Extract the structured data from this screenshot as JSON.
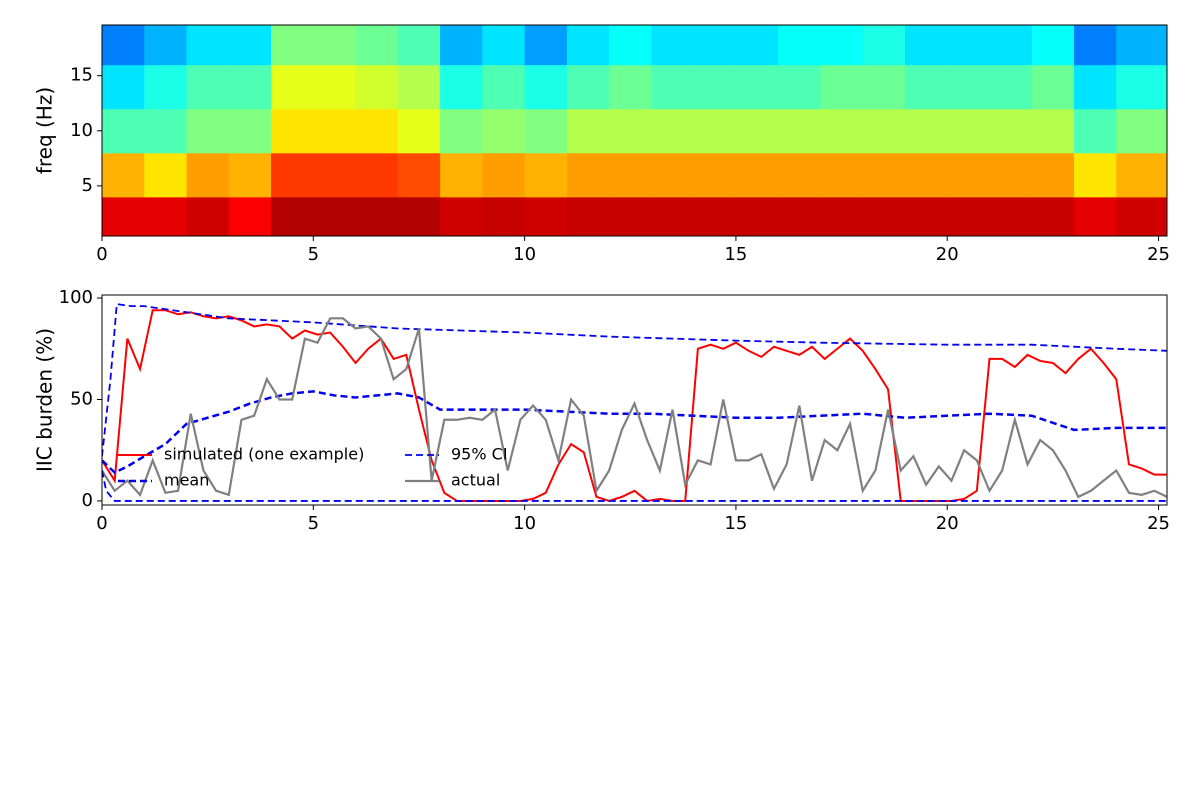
{
  "chart_data": [
    {
      "type": "heatmap",
      "ylabel": "freq (Hz)",
      "colormap": "jet",
      "x_edges": [
        0,
        1,
        2,
        3,
        4,
        5,
        6,
        7,
        8,
        9,
        10,
        11,
        12,
        13,
        14,
        15,
        16,
        17,
        18,
        19,
        20,
        21,
        22,
        23,
        24,
        25,
        25.2
      ],
      "y_edges": [
        0.45,
        4,
        8,
        12,
        16,
        19.6
      ],
      "z": [
        [
          0.9,
          0.7,
          0.45,
          0.35,
          0.25
        ],
        [
          0.9,
          0.65,
          0.45,
          0.4,
          0.3
        ],
        [
          0.92,
          0.72,
          0.5,
          0.45,
          0.35
        ],
        [
          0.88,
          0.7,
          0.5,
          0.45,
          0.35
        ],
        [
          0.95,
          0.82,
          0.65,
          0.6,
          0.5
        ],
        [
          0.95,
          0.82,
          0.65,
          0.6,
          0.5
        ],
        [
          0.95,
          0.82,
          0.65,
          0.58,
          0.48
        ],
        [
          0.95,
          0.8,
          0.6,
          0.55,
          0.45
        ],
        [
          0.92,
          0.7,
          0.5,
          0.4,
          0.3
        ],
        [
          0.93,
          0.72,
          0.52,
          0.45,
          0.35
        ],
        [
          0.92,
          0.7,
          0.5,
          0.4,
          0.28
        ],
        [
          0.93,
          0.72,
          0.55,
          0.45,
          0.35
        ],
        [
          0.93,
          0.72,
          0.55,
          0.48,
          0.38
        ],
        [
          0.93,
          0.72,
          0.55,
          0.45,
          0.35
        ],
        [
          0.93,
          0.72,
          0.55,
          0.45,
          0.35
        ],
        [
          0.93,
          0.72,
          0.55,
          0.45,
          0.35
        ],
        [
          0.93,
          0.72,
          0.55,
          0.45,
          0.38
        ],
        [
          0.93,
          0.72,
          0.55,
          0.48,
          0.38
        ],
        [
          0.93,
          0.72,
          0.55,
          0.48,
          0.4
        ],
        [
          0.93,
          0.72,
          0.55,
          0.45,
          0.35
        ],
        [
          0.93,
          0.72,
          0.55,
          0.45,
          0.35
        ],
        [
          0.93,
          0.72,
          0.55,
          0.45,
          0.35
        ],
        [
          0.93,
          0.72,
          0.55,
          0.48,
          0.38
        ],
        [
          0.9,
          0.65,
          0.45,
          0.35,
          0.25
        ],
        [
          0.92,
          0.7,
          0.5,
          0.4,
          0.3
        ],
        [
          0.92,
          0.7,
          0.5,
          0.4,
          0.3
        ]
      ],
      "xlim": [
        0,
        25.2
      ],
      "ylim": [
        0.45,
        19.6
      ],
      "xticks": [
        0,
        5,
        10,
        15,
        20,
        25
      ],
      "yticks": [
        5,
        10,
        15
      ]
    },
    {
      "type": "line",
      "ylabel": "IIC burden (%)",
      "xlim": [
        0,
        25.2
      ],
      "ylim": [
        -2,
        101.5
      ],
      "xticks": [
        0,
        5,
        10,
        15,
        20,
        25
      ],
      "yticks": [
        0,
        50,
        100
      ],
      "series": [
        {
          "name": "simulated (one example)",
          "color": "#ff0000",
          "dash": false,
          "width": 2,
          "x": [
            0,
            0.3,
            0.6,
            0.9,
            1.2,
            1.5,
            1.8,
            2.1,
            2.4,
            2.7,
            3,
            3.3,
            3.6,
            3.9,
            4.2,
            4.5,
            4.8,
            5.1,
            5.4,
            5.7,
            6,
            6.3,
            6.6,
            6.9,
            7.2,
            7.5,
            7.8,
            8.1,
            8.4,
            8.7,
            9,
            9.3,
            9.6,
            9.9,
            10.2,
            10.5,
            10.8,
            11.1,
            11.4,
            11.7,
            12,
            12.3,
            12.6,
            12.9,
            13.2,
            13.5,
            13.8,
            14.1,
            14.4,
            14.7,
            15,
            15.3,
            15.6,
            15.9,
            16.2,
            16.5,
            16.8,
            17.1,
            17.4,
            17.7,
            18,
            18.3,
            18.6,
            18.9,
            19.2,
            19.5,
            19.8,
            20.1,
            20.4,
            20.7,
            21,
            21.3,
            21.6,
            21.9,
            22.2,
            22.5,
            22.8,
            23.1,
            23.4,
            23.7,
            24,
            24.3,
            24.6,
            24.9,
            25.2
          ],
          "values": [
            20,
            10,
            80,
            65,
            94,
            94,
            92,
            93,
            91,
            90,
            91,
            89,
            86,
            87,
            86,
            80,
            84,
            82,
            83,
            76,
            68,
            75,
            80,
            70,
            72,
            45,
            20,
            4,
            0,
            0,
            0,
            0,
            0,
            0,
            1,
            4,
            18,
            28,
            24,
            2,
            0,
            2,
            5,
            0,
            1,
            0,
            0,
            75,
            77,
            75,
            78,
            74,
            71,
            76,
            74,
            72,
            76,
            70,
            75,
            80,
            74,
            65,
            55,
            0,
            0,
            0,
            0,
            0,
            1,
            5,
            70,
            70,
            66,
            72,
            69,
            68,
            63,
            70,
            75,
            68,
            60,
            18,
            16,
            13,
            13
          ]
        },
        {
          "name": "mean",
          "color": "#0000ee",
          "dash": true,
          "width": 2.5,
          "x": [
            0,
            0.3,
            0.6,
            1,
            1.5,
            2,
            2.5,
            3,
            3.5,
            4,
            4.5,
            5,
            5.5,
            6,
            7,
            7.5,
            8,
            9,
            10,
            11,
            12,
            13,
            14,
            15,
            16,
            17,
            18,
            19,
            20,
            21,
            22,
            23,
            24,
            25.2
          ],
          "values": [
            20,
            14,
            17,
            22,
            28,
            38,
            41,
            44,
            48,
            51,
            53,
            54,
            52,
            51,
            53,
            51,
            45,
            45,
            45,
            44,
            43,
            43,
            42,
            41,
            41,
            42,
            43,
            41,
            42,
            43,
            42,
            35,
            36,
            36
          ]
        },
        {
          "name": "95% CI",
          "color": "#0000ee",
          "dash": true,
          "width": 1.8,
          "x": [
            0,
            0.2,
            0.35,
            0.7,
            1,
            2,
            3,
            5,
            7,
            10,
            12,
            15,
            17,
            20,
            22,
            24,
            25.2
          ],
          "values": [
            22,
            60,
            97,
            96,
            96,
            93,
            90,
            88,
            85,
            83,
            81,
            79,
            78,
            77,
            77,
            75,
            74
          ]
        },
        {
          "name": "actual",
          "color": "#808080",
          "dash": false,
          "width": 2.2,
          "x": [
            0,
            0.3,
            0.6,
            0.9,
            1.2,
            1.5,
            1.8,
            2.1,
            2.4,
            2.7,
            3,
            3.3,
            3.6,
            3.9,
            4.2,
            4.5,
            4.8,
            5.1,
            5.4,
            5.7,
            6,
            6.3,
            6.6,
            6.9,
            7.2,
            7.5,
            7.8,
            8.1,
            8.4,
            8.7,
            9,
            9.3,
            9.6,
            9.9,
            10.2,
            10.5,
            10.8,
            11.1,
            11.4,
            11.7,
            12,
            12.3,
            12.6,
            12.9,
            13.2,
            13.5,
            13.8,
            14.1,
            14.4,
            14.7,
            15,
            15.3,
            15.6,
            15.9,
            16.2,
            16.5,
            16.8,
            17.1,
            17.4,
            17.7,
            18,
            18.3,
            18.6,
            18.9,
            19.2,
            19.5,
            19.8,
            20.1,
            20.4,
            20.7,
            21,
            21.3,
            21.6,
            21.9,
            22.2,
            22.5,
            22.8,
            23.1,
            23.4,
            23.7,
            24,
            24.3,
            24.6,
            24.9,
            25.2
          ],
          "values": [
            15,
            5,
            10,
            3,
            20,
            4,
            5,
            43,
            15,
            5,
            3,
            40,
            42,
            60,
            50,
            50,
            80,
            78,
            90,
            90,
            85,
            86,
            80,
            60,
            65,
            85,
            10,
            40,
            40,
            41,
            40,
            45,
            15,
            40,
            47,
            40,
            20,
            50,
            42,
            5,
            15,
            35,
            48,
            30,
            15,
            45,
            8,
            20,
            18,
            50,
            20,
            20,
            23,
            6,
            18,
            47,
            10,
            30,
            25,
            38,
            5,
            15,
            45,
            15,
            22,
            8,
            17,
            10,
            25,
            20,
            5,
            15,
            40,
            18,
            30,
            25,
            15,
            2,
            5,
            10,
            15,
            4,
            3,
            5,
            2
          ]
        },
        {
          "color": "#0000ee",
          "dash": true,
          "width": 1.8,
          "x": [
            0,
            0.1,
            0.3,
            25.2
          ],
          "values": [
            15,
            5,
            0,
            0
          ]
        }
      ]
    }
  ]
}
